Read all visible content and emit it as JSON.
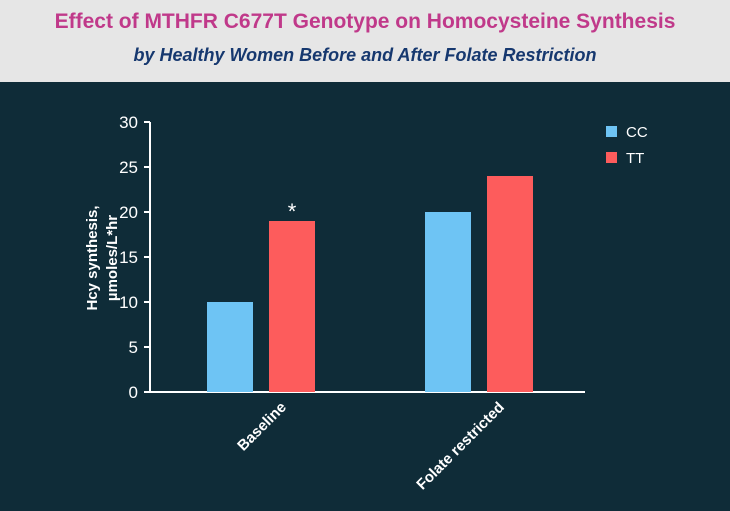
{
  "header": {
    "title": "Effect of MTHFR C677T Genotype on Homocysteine Synthesis",
    "subtitle": "by Healthy Women Before and After Folate Restriction"
  },
  "chart_data": {
    "type": "bar",
    "categories": [
      "Baseline",
      "Folate restricted"
    ],
    "series": [
      {
        "name": "CC",
        "values": [
          10,
          20
        ],
        "color": "#6ec4f4"
      },
      {
        "name": "TT",
        "values": [
          19,
          24
        ],
        "color": "#fd5c5c"
      }
    ],
    "ylabel_line1": "Hcy synthesis,",
    "ylabel_line2": "µmoles/L*hr",
    "ylim": [
      0,
      30
    ],
    "yticks": [
      0,
      5,
      10,
      15,
      20,
      25,
      30
    ],
    "legend_position": "top-right",
    "annotations": [
      {
        "text": "*",
        "category": "Baseline",
        "series": "TT"
      }
    ],
    "grid": false
  },
  "colors": {
    "background": "#0f2c38",
    "header_background": "#e6e6e6",
    "title": "#c0398a",
    "subtitle": "#16386f",
    "axis": "#ffffff"
  }
}
